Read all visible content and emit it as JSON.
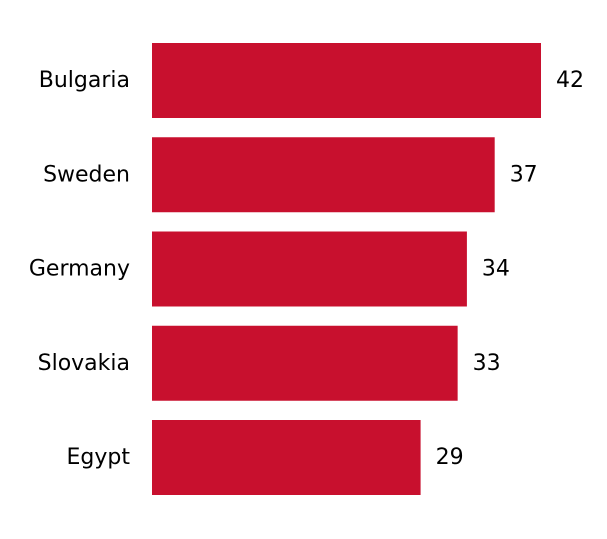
{
  "chart_data": {
    "type": "bar",
    "orientation": "horizontal",
    "categories": [
      "Bulgaria",
      "Sweden",
      "Germany",
      "Slovakia",
      "Egypt"
    ],
    "values": [
      42,
      37,
      34,
      33,
      29
    ],
    "value_labels": [
      "42",
      "37",
      "34",
      "33",
      "29"
    ],
    "xlim": [
      0,
      42
    ],
    "grid": false,
    "legend": "none",
    "bar_color": "#c8102e"
  }
}
